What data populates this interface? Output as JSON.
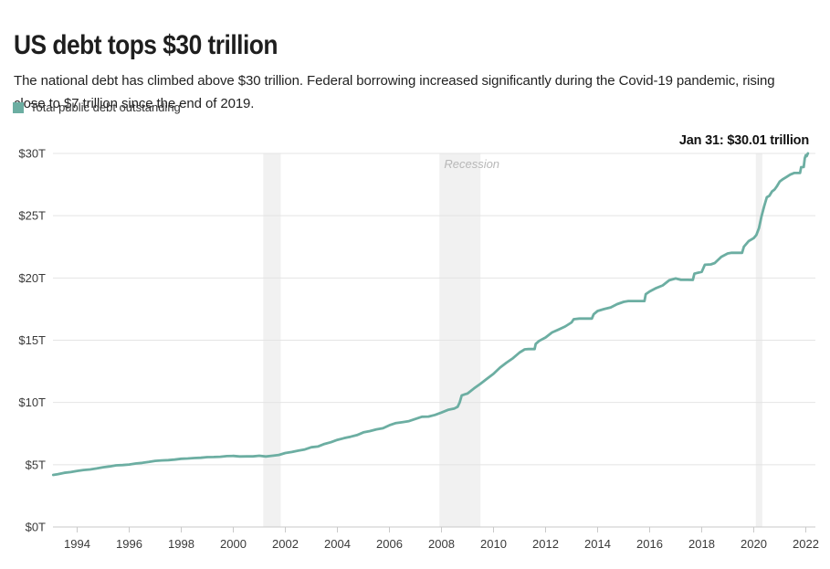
{
  "colors": {
    "line": "#6caea2",
    "recession_band": "#f1f1f1",
    "grid": "#e4e4e4",
    "axis": "#c9c9c9",
    "tick_text": "#3a3a3a",
    "recession_text": "#b8b8b8",
    "title_text": "#1e1e1e",
    "annotation_text": "#111111"
  },
  "chart_data": {
    "type": "line",
    "title": "US debt tops $30 trillion",
    "subtitle": "The national debt has climbed above $30 trillion. Federal borrowing increased significantly during the Covid-19 pandemic, rising close to $7 trillion since the end of 2019.",
    "xlabel": "",
    "ylabel": "",
    "xlim": [
      1993,
      2022.15
    ],
    "ylim": [
      0,
      30
    ],
    "grid": "horizontal",
    "legend_position": "top-left",
    "yticks": [
      {
        "v": 0,
        "label": "$0T"
      },
      {
        "v": 5,
        "label": "$5T"
      },
      {
        "v": 10,
        "label": "$10T"
      },
      {
        "v": 15,
        "label": "$15T"
      },
      {
        "v": 20,
        "label": "$20T"
      },
      {
        "v": 25,
        "label": "$25T"
      },
      {
        "v": 30,
        "label": "$30T"
      }
    ],
    "xticks": [
      1994,
      1996,
      1998,
      2000,
      2002,
      2004,
      2006,
      2008,
      2010,
      2012,
      2014,
      2016,
      2018,
      2020,
      2022
    ],
    "annotations": {
      "end_label": "Jan 31: $30.01 trillion",
      "recession_label": "Recession"
    },
    "recessions": [
      {
        "start": 2001.15,
        "end": 2001.82
      },
      {
        "start": 2007.92,
        "end": 2009.5
      },
      {
        "start": 2020.08,
        "end": 2020.33
      }
    ],
    "series": [
      {
        "name": "Total public debt outstanding",
        "units": "trillions of US dollars",
        "points": [
          [
            1993.08,
            4.18
          ],
          [
            1993.25,
            4.23
          ],
          [
            1993.5,
            4.35
          ],
          [
            1993.75,
            4.41
          ],
          [
            1994,
            4.5
          ],
          [
            1994.25,
            4.58
          ],
          [
            1994.5,
            4.62
          ],
          [
            1994.75,
            4.7
          ],
          [
            1995,
            4.8
          ],
          [
            1995.25,
            4.86
          ],
          [
            1995.5,
            4.95
          ],
          [
            1995.75,
            4.97
          ],
          [
            1996,
            5.02
          ],
          [
            1996.25,
            5.1
          ],
          [
            1996.5,
            5.15
          ],
          [
            1996.75,
            5.22
          ],
          [
            1997,
            5.31
          ],
          [
            1997.25,
            5.35
          ],
          [
            1997.5,
            5.37
          ],
          [
            1997.75,
            5.41
          ],
          [
            1998,
            5.48
          ],
          [
            1998.25,
            5.5
          ],
          [
            1998.5,
            5.54
          ],
          [
            1998.75,
            5.56
          ],
          [
            1999,
            5.61
          ],
          [
            1999.25,
            5.62
          ],
          [
            1999.5,
            5.64
          ],
          [
            1999.75,
            5.69
          ],
          [
            2000,
            5.71
          ],
          [
            2000.25,
            5.66
          ],
          [
            2000.5,
            5.67
          ],
          [
            2000.75,
            5.67
          ],
          [
            2001,
            5.72
          ],
          [
            2001.25,
            5.66
          ],
          [
            2001.5,
            5.72
          ],
          [
            2001.75,
            5.79
          ],
          [
            2002,
            5.94
          ],
          [
            2002.25,
            6.02
          ],
          [
            2002.5,
            6.13
          ],
          [
            2002.75,
            6.23
          ],
          [
            2003,
            6.4
          ],
          [
            2003.25,
            6.46
          ],
          [
            2003.5,
            6.67
          ],
          [
            2003.75,
            6.81
          ],
          [
            2004,
            7.0
          ],
          [
            2004.25,
            7.13
          ],
          [
            2004.5,
            7.25
          ],
          [
            2004.75,
            7.38
          ],
          [
            2005,
            7.6
          ],
          [
            2005.25,
            7.7
          ],
          [
            2005.5,
            7.84
          ],
          [
            2005.75,
            7.93
          ],
          [
            2006,
            8.17
          ],
          [
            2006.25,
            8.35
          ],
          [
            2006.5,
            8.42
          ],
          [
            2006.75,
            8.5
          ],
          [
            2007,
            8.68
          ],
          [
            2007.25,
            8.85
          ],
          [
            2007.5,
            8.87
          ],
          [
            2007.75,
            9.0
          ],
          [
            2008,
            9.19
          ],
          [
            2008.25,
            9.4
          ],
          [
            2008.5,
            9.52
          ],
          [
            2008.62,
            9.65
          ],
          [
            2008.7,
            10.02
          ],
          [
            2008.78,
            10.57
          ],
          [
            2008.9,
            10.66
          ],
          [
            2009,
            10.72
          ],
          [
            2009.25,
            11.13
          ],
          [
            2009.5,
            11.51
          ],
          [
            2009.75,
            11.91
          ],
          [
            2010,
            12.3
          ],
          [
            2010.25,
            12.8
          ],
          [
            2010.5,
            13.2
          ],
          [
            2010.75,
            13.56
          ],
          [
            2011,
            14.01
          ],
          [
            2011.2,
            14.27
          ],
          [
            2011.35,
            14.29
          ],
          [
            2011.58,
            14.29
          ],
          [
            2011.62,
            14.7
          ],
          [
            2011.75,
            14.94
          ],
          [
            2012,
            15.22
          ],
          [
            2012.25,
            15.62
          ],
          [
            2012.5,
            15.86
          ],
          [
            2012.75,
            16.1
          ],
          [
            2013,
            16.43
          ],
          [
            2013.08,
            16.69
          ],
          [
            2013.3,
            16.74
          ],
          [
            2013.6,
            16.74
          ],
          [
            2013.78,
            16.74
          ],
          [
            2013.85,
            17.08
          ],
          [
            2014,
            17.35
          ],
          [
            2014.25,
            17.5
          ],
          [
            2014.5,
            17.63
          ],
          [
            2014.75,
            17.9
          ],
          [
            2015,
            18.08
          ],
          [
            2015.18,
            18.15
          ],
          [
            2015.5,
            18.15
          ],
          [
            2015.8,
            18.15
          ],
          [
            2015.85,
            18.7
          ],
          [
            2016,
            18.92
          ],
          [
            2016.25,
            19.19
          ],
          [
            2016.5,
            19.4
          ],
          [
            2016.75,
            19.81
          ],
          [
            2017,
            19.96
          ],
          [
            2017.2,
            19.85
          ],
          [
            2017.45,
            19.85
          ],
          [
            2017.66,
            19.84
          ],
          [
            2017.72,
            20.35
          ],
          [
            2018,
            20.49
          ],
          [
            2018.12,
            21.06
          ],
          [
            2018.35,
            21.09
          ],
          [
            2018.5,
            21.2
          ],
          [
            2018.75,
            21.7
          ],
          [
            2019,
            21.97
          ],
          [
            2019.15,
            22.02
          ],
          [
            2019.35,
            22.02
          ],
          [
            2019.55,
            22.02
          ],
          [
            2019.62,
            22.51
          ],
          [
            2019.8,
            22.95
          ],
          [
            2020,
            23.2
          ],
          [
            2020.1,
            23.44
          ],
          [
            2020.2,
            24.0
          ],
          [
            2020.3,
            24.95
          ],
          [
            2020.4,
            25.75
          ],
          [
            2020.5,
            26.48
          ],
          [
            2020.6,
            26.6
          ],
          [
            2020.7,
            26.95
          ],
          [
            2020.8,
            27.1
          ],
          [
            2020.9,
            27.4
          ],
          [
            2021,
            27.75
          ],
          [
            2021.1,
            27.9
          ],
          [
            2021.25,
            28.1
          ],
          [
            2021.4,
            28.3
          ],
          [
            2021.55,
            28.43
          ],
          [
            2021.7,
            28.43
          ],
          [
            2021.78,
            28.43
          ],
          [
            2021.82,
            28.9
          ],
          [
            2021.92,
            28.91
          ],
          [
            2021.96,
            29.62
          ],
          [
            2022,
            29.85
          ],
          [
            2022.03,
            29.78
          ],
          [
            2022.08,
            30.01
          ]
        ]
      }
    ]
  }
}
